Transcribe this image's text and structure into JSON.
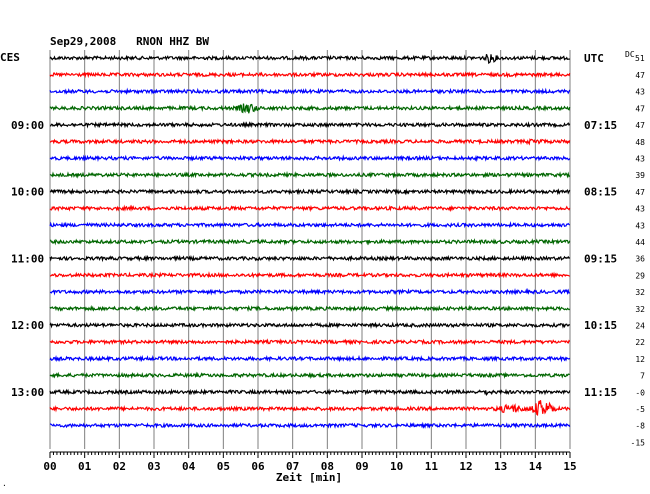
{
  "chart_data": {
    "type": "line",
    "title": "Sep29,2008   RNON HHZ BW",
    "left_axis_label": "CES",
    "right_axis_label": "UTC",
    "dc_header": "DC",
    "dc_header_value": "51",
    "xlabel": "Zeit [min]",
    "x_ticks": [
      "00",
      "01",
      "02",
      "03",
      "04",
      "05",
      "06",
      "07",
      "08",
      "09",
      "10",
      "11",
      "12",
      "13",
      "14",
      "15"
    ],
    "xlim": [
      0,
      15
    ],
    "trace_colors": [
      "#000000",
      "#ff0000",
      "#0000ff",
      "#006600"
    ],
    "left_hour_labels": [
      {
        "row": 4,
        "text": "09:00"
      },
      {
        "row": 8,
        "text": "10:00"
      },
      {
        "row": 12,
        "text": "11:00"
      },
      {
        "row": 16,
        "text": "12:00"
      },
      {
        "row": 20,
        "text": "13:00"
      }
    ],
    "right_time_labels": [
      {
        "row": 0,
        "text": "UTC"
      },
      {
        "row": 4,
        "text": "07:15"
      },
      {
        "row": 8,
        "text": "08:15"
      },
      {
        "row": 12,
        "text": "09:15"
      },
      {
        "row": 16,
        "text": "10:15"
      },
      {
        "row": 20,
        "text": "11:15"
      }
    ],
    "dc_offsets": [
      "47",
      "43",
      "47",
      "47",
      "48",
      "43",
      "39",
      "47",
      "43",
      "43",
      "44",
      "36",
      "29",
      "32",
      "32",
      "24",
      "22",
      "12",
      "7",
      "-0",
      "-5",
      "-8",
      "-15"
    ],
    "events": [
      {
        "row": 0,
        "minute": 12.7,
        "amplitude": 6,
        "width_min": 0.3
      },
      {
        "row": 3,
        "minute": 5.7,
        "amplitude": 6,
        "width_min": 0.5
      },
      {
        "row": 5,
        "minute": 14.0,
        "amplitude": 3,
        "width_min": 0.8
      },
      {
        "row": 20,
        "minute": 12.6,
        "amplitude": 3,
        "width_min": 0.4
      },
      {
        "row": 21,
        "minute": 13.3,
        "amplitude": 5,
        "width_min": 0.8
      },
      {
        "row": 21,
        "minute": 14.2,
        "amplitude": 10,
        "width_min": 0.5
      }
    ],
    "grid": true
  }
}
